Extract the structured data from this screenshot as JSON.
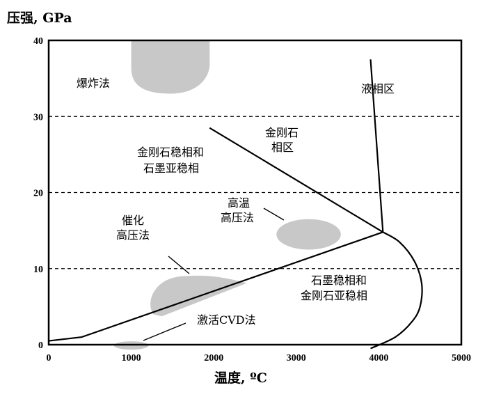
{
  "chart_data": {
    "type": "phase-diagram",
    "title": "",
    "xlabel": "温度, ºC",
    "ylabel": "压强, GPa",
    "xlim": [
      0,
      5000
    ],
    "ylim": [
      0,
      40
    ],
    "x_ticks": [
      "0",
      "1000",
      "2000",
      "3000",
      "4000",
      "5000"
    ],
    "y_ticks": [
      "0",
      "10",
      "20",
      "30",
      "40"
    ],
    "gridlines_y": [
      10,
      20,
      30
    ],
    "grid_style": "dashed",
    "lines": [
      {
        "name": "graphite-diamond-boundary",
        "points": [
          [
            0,
            0.5
          ],
          [
            400,
            1.0
          ],
          [
            4050,
            14.8
          ]
        ]
      },
      {
        "name": "diamond-liquid-boundary",
        "points": [
          [
            3900,
            37.5
          ],
          [
            4050,
            14.8
          ]
        ]
      },
      {
        "name": "metastable-boundary",
        "points": [
          [
            1950,
            28.5
          ],
          [
            4050,
            14.8
          ]
        ]
      },
      {
        "name": "graphite-liquid-boundary",
        "points": [
          [
            4050,
            14.8
          ],
          [
            4250,
            13.5
          ],
          [
            4430,
            11.0
          ],
          [
            4520,
            8.0
          ],
          [
            4500,
            5.0
          ],
          [
            4400,
            3.0
          ],
          [
            4200,
            1.0
          ],
          [
            3900,
            -0.5
          ]
        ]
      }
    ],
    "regions": [
      {
        "name": "explosion",
        "label": "爆炸法",
        "x": [
          1000,
          1950
        ],
        "y": [
          33.0,
          40
        ],
        "color": "#c8c8c8"
      },
      {
        "name": "high-temp-high-pressure",
        "label_lines": [
          "高温",
          "高压法"
        ],
        "center": [
          3150,
          14.5
        ],
        "rx": 390,
        "ry": 2.0,
        "color": "#c8c8c8"
      },
      {
        "name": "catalytic-high-pressure",
        "label_lines": [
          "催化",
          "高压法"
        ],
        "x": [
          1200,
          2400
        ],
        "y": [
          4.0,
          9.0
        ],
        "color": "#c8c8c8"
      },
      {
        "name": "activated-cvd",
        "label": "激活CVD法",
        "center": [
          1000,
          -0.1
        ],
        "rx": 210,
        "ry": 0.55,
        "color": "#c8c8c8"
      }
    ],
    "annotations": [
      {
        "text_lines": [
          "液相区"
        ]
      },
      {
        "text_lines": [
          "金刚石",
          "相区"
        ]
      },
      {
        "text_lines": [
          "金刚石稳相和",
          "石墨亚稳相"
        ]
      },
      {
        "text_lines": [
          "石墨稳相和",
          "金刚石亚稳相"
        ]
      }
    ]
  }
}
